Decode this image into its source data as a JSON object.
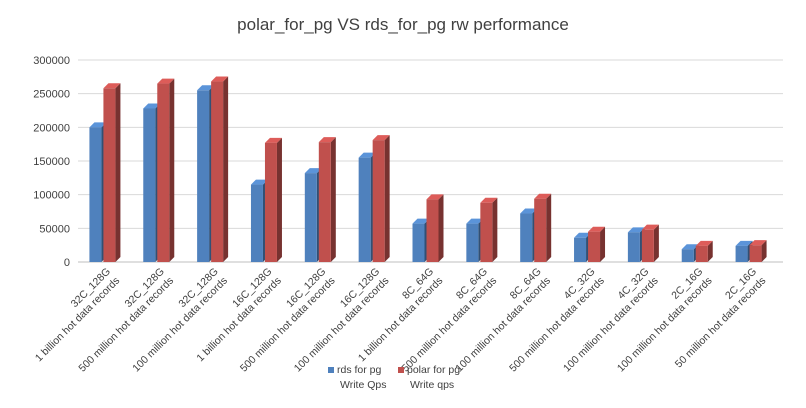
{
  "chart_data": {
    "type": "bar",
    "title": "polar_for_pg VS rds_for_pg rw performance",
    "categories": [
      [
        "32C_128G",
        "1 billion hot data records"
      ],
      [
        "32C_128G",
        "500 million hot data records"
      ],
      [
        "32C_128G",
        "100 million hot data records"
      ],
      [
        "16C_128G",
        "1 billion hot data records"
      ],
      [
        "16C_128G",
        "500 million hot data records"
      ],
      [
        "16C_128G",
        "100 million hot data records"
      ],
      [
        "8C_64G",
        "1 billion hot data records"
      ],
      [
        "8C_64G",
        "500 million hot data records"
      ],
      [
        "8C_64G",
        "100 million hot data records"
      ],
      [
        "4C_32G",
        "500 million hot data records"
      ],
      [
        "4C_32G",
        "100 million hot data records"
      ],
      [
        "2C_16G",
        "100 million hot data records"
      ],
      [
        "2C_16G",
        "50 million hot data records"
      ]
    ],
    "series": [
      {
        "name": [
          "rds for pg",
          "Write Qps"
        ],
        "color": "#4f81bd",
        "values": [
          200000,
          228000,
          255000,
          115000,
          132000,
          155000,
          57000,
          57000,
          72000,
          36000,
          44000,
          19000,
          24000
        ]
      },
      {
        "name": [
          "polar for pg",
          "Write qps"
        ],
        "color": "#c0504d",
        "values": [
          258000,
          265000,
          268000,
          177000,
          178000,
          181000,
          93000,
          88000,
          94000,
          45000,
          48000,
          24000,
          25000
        ]
      }
    ],
    "ylim": [
      0,
      300000
    ],
    "yticks": [
      0,
      50000,
      100000,
      150000,
      200000,
      250000,
      300000
    ],
    "ytick_labels": [
      "0",
      "50000",
      "100000",
      "150000",
      "200000",
      "250000",
      "300000"
    ],
    "grid": true,
    "legend_position": "bottom",
    "bar_style": "3d"
  }
}
